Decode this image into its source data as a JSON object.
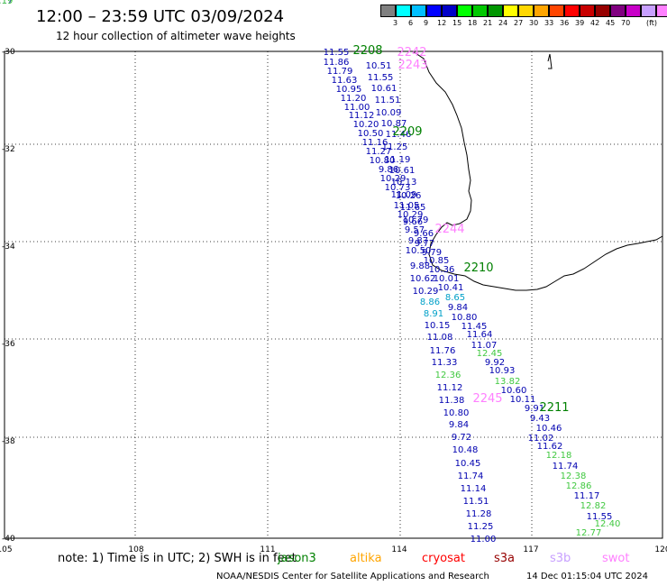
{
  "header": {
    "title": "12:00 – 23:59 UTC 03/09/2024",
    "subtitle": "12 hour collection of altimeter wave heights"
  },
  "colorbar": {
    "colors": [
      "#808080",
      "#00ffff",
      "#00bfff",
      "#0000ff",
      "#0000c8",
      "#00ff00",
      "#00c800",
      "#009600",
      "#ffff00",
      "#ffd700",
      "#ffa500",
      "#ff4500",
      "#ff0000",
      "#c80000",
      "#960000",
      "#800080",
      "#c800c8",
      "#c8a0ff",
      "#ff80ff",
      "#000000"
    ],
    "labels": [
      "3",
      "6",
      "9",
      "12",
      "15",
      "18",
      "21",
      "24",
      "27",
      "30",
      "33",
      "36",
      "39",
      "42",
      "45",
      "70"
    ],
    "unit": "(ft)"
  },
  "map": {
    "lon_ticks": [
      "105",
      "108",
      "111",
      "114",
      "117",
      "120"
    ],
    "lat_ticks": [
      "-30",
      "-32",
      "-34",
      "-36",
      "-38",
      "-40"
    ],
    "extent": {
      "lon_min": 105,
      "lon_max": 120,
      "lat_max": -30,
      "lat_min": -40
    },
    "pass_labels": [
      {
        "text": "2208",
        "color": "#008000"
      },
      {
        "text": "2242",
        "color": "#ff80ff"
      },
      {
        "text": "2243",
        "color": "#ff80ff"
      },
      {
        "text": "2209",
        "color": "#008000"
      },
      {
        "text": "2244",
        "color": "#ff80ff"
      },
      {
        "text": "2210",
        "color": "#008000"
      },
      {
        "text": "2245",
        "color": "#ff80ff"
      },
      {
        "text": "2211",
        "color": "#008000"
      }
    ],
    "readings": [
      {
        "text": "11.55",
        "color": "#0000b0"
      },
      {
        "text": "11.86",
        "color": "#0000b0"
      },
      {
        "text": "11.79",
        "color": "#0000b0"
      },
      {
        "text": "11.63",
        "color": "#0000b0"
      },
      {
        "text": "10.95",
        "color": "#0000b0"
      },
      {
        "text": "11.20",
        "color": "#0000b0"
      },
      {
        "text": "11.00",
        "color": "#0000b0"
      },
      {
        "text": "11.12",
        "color": "#0000b0"
      },
      {
        "text": "10.20",
        "color": "#0000b0"
      },
      {
        "text": "10.50",
        "color": "#0000b0"
      },
      {
        "text": "11.16",
        "color": "#0000b0"
      },
      {
        "text": "11.27",
        "color": "#0000b0"
      },
      {
        "text": "10.80",
        "color": "#0000b0"
      },
      {
        "text": "9.86",
        "color": "#0000b0"
      },
      {
        "text": "10.29",
        "color": "#0000b0"
      },
      {
        "text": "10.73",
        "color": "#0000b0"
      },
      {
        "text": "11.09",
        "color": "#0000b0"
      },
      {
        "text": "11.05",
        "color": "#0000b0"
      },
      {
        "text": "10.29",
        "color": "#0000b0"
      },
      {
        "text": "9.66",
        "color": "#0000b0"
      },
      {
        "text": "9.57",
        "color": "#0000b0"
      },
      {
        "text": "9.87",
        "color": "#0000b0"
      },
      {
        "text": "10.50",
        "color": "#0000b0"
      },
      {
        "text": "9.88",
        "color": "#0000b0"
      },
      {
        "text": "10.62",
        "color": "#0000b0"
      },
      {
        "text": "10.29",
        "color": "#0000b0"
      },
      {
        "text": "8.86",
        "color": "#00a0c8"
      },
      {
        "text": "8.91",
        "color": "#00a0c8"
      },
      {
        "text": "10.15",
        "color": "#0000b0"
      },
      {
        "text": "11.08",
        "color": "#0000b0"
      },
      {
        "text": "11.76",
        "color": "#0000b0"
      },
      {
        "text": "11.33",
        "color": "#0000b0"
      },
      {
        "text": "12.36",
        "color": "#40c840"
      },
      {
        "text": "11.12",
        "color": "#0000b0"
      },
      {
        "text": "11.38",
        "color": "#0000b0"
      },
      {
        "text": "10.80",
        "color": "#0000b0"
      },
      {
        "text": "9.84",
        "color": "#0000b0"
      },
      {
        "text": "9.72",
        "color": "#0000b0"
      },
      {
        "text": "10.48",
        "color": "#0000b0"
      },
      {
        "text": "10.45",
        "color": "#0000b0"
      },
      {
        "text": "11.74",
        "color": "#0000b0"
      },
      {
        "text": "11.14",
        "color": "#0000b0"
      },
      {
        "text": "11.51",
        "color": "#0000b0"
      },
      {
        "text": "11.28",
        "color": "#0000b0"
      },
      {
        "text": "11.25",
        "color": "#0000b0"
      },
      {
        "text": "11.00",
        "color": "#0000b0"
      },
      {
        "text": "10.51",
        "color": "#0000b0"
      },
      {
        "text": "11.55",
        "color": "#0000b0"
      },
      {
        "text": "10.61",
        "color": "#0000b0"
      },
      {
        "text": "11.51",
        "color": "#0000b0"
      },
      {
        "text": "10.09",
        "color": "#0000b0"
      },
      {
        "text": "10.87",
        "color": "#0000b0"
      },
      {
        "text": "11.46",
        "color": "#0000b0"
      },
      {
        "text": "11.25",
        "color": "#0000b0"
      },
      {
        "text": "11.19",
        "color": "#0000b0"
      },
      {
        "text": "10.61",
        "color": "#0000b0"
      },
      {
        "text": "10.13",
        "color": "#0000b0"
      },
      {
        "text": "10.26",
        "color": "#0000b0"
      },
      {
        "text": "11.65",
        "color": "#0000b0"
      },
      {
        "text": "10.79",
        "color": "#0000b0"
      },
      {
        "text": "9.66",
        "color": "#0000b0"
      },
      {
        "text": "9.77",
        "color": "#0000b0"
      },
      {
        "text": "9.79",
        "color": "#0000b0"
      },
      {
        "text": "10.85",
        "color": "#0000b0"
      },
      {
        "text": "10.36",
        "color": "#0000b0"
      },
      {
        "text": "10.01",
        "color": "#0000b0"
      },
      {
        "text": "10.41",
        "color": "#0000b0"
      },
      {
        "text": "8.65",
        "color": "#00a0c8"
      },
      {
        "text": "9.84",
        "color": "#0000b0"
      },
      {
        "text": "10.80",
        "color": "#0000b0"
      },
      {
        "text": "11.45",
        "color": "#0000b0"
      },
      {
        "text": "11.64",
        "color": "#0000b0"
      },
      {
        "text": "11.07",
        "color": "#0000b0"
      },
      {
        "text": "12.45",
        "color": "#40c840"
      },
      {
        "text": "9.92",
        "color": "#0000b0"
      },
      {
        "text": "10.93",
        "color": "#0000b0"
      },
      {
        "text": "13.82",
        "color": "#40c840"
      },
      {
        "text": "10.60",
        "color": "#0000b0"
      },
      {
        "text": "10.11",
        "color": "#0000b0"
      },
      {
        "text": "9.91",
        "color": "#0000b0"
      },
      {
        "text": "9.43",
        "color": "#0000b0"
      },
      {
        "text": "10.46",
        "color": "#0000b0"
      },
      {
        "text": "11.02",
        "color": "#0000b0"
      },
      {
        "text": "11.62",
        "color": "#0000b0"
      },
      {
        "text": "12.18",
        "color": "#40c840"
      },
      {
        "text": "11.74",
        "color": "#0000b0"
      },
      {
        "text": "12.38",
        "color": "#40c840"
      },
      {
        "text": "12.86",
        "color": "#40c840"
      },
      {
        "text": "11.17",
        "color": "#0000b0"
      },
      {
        "text": "12.82",
        "color": "#40c840"
      },
      {
        "text": "11.55",
        "color": "#0000b0"
      },
      {
        "text": "12.40",
        "color": "#40c840"
      },
      {
        "text": "12.77",
        "color": "#40c840"
      },
      {
        "text": "11.17",
        "color": "#0000b0"
      },
      {
        "text": "12.19",
        "color": "#40c840"
      }
    ]
  },
  "notes": {
    "text": "note:  1) Time is in UTC;  2) SWH is in feet",
    "satellites": [
      {
        "name": "jason3",
        "color": "#008000"
      },
      {
        "name": "altika",
        "color": "#ffa500"
      },
      {
        "name": "cryosat",
        "color": "#ff0000"
      },
      {
        "name": "s3a",
        "color": "#960000"
      },
      {
        "name": "s3b",
        "color": "#c8a0ff"
      },
      {
        "name": "swot",
        "color": "#ff80ff"
      }
    ]
  },
  "footer": {
    "credit": "NOAA/NESDIS Center for Satellite Applications and Research",
    "timestamp": "14 Dec 01:15:04 UTC 2024"
  }
}
